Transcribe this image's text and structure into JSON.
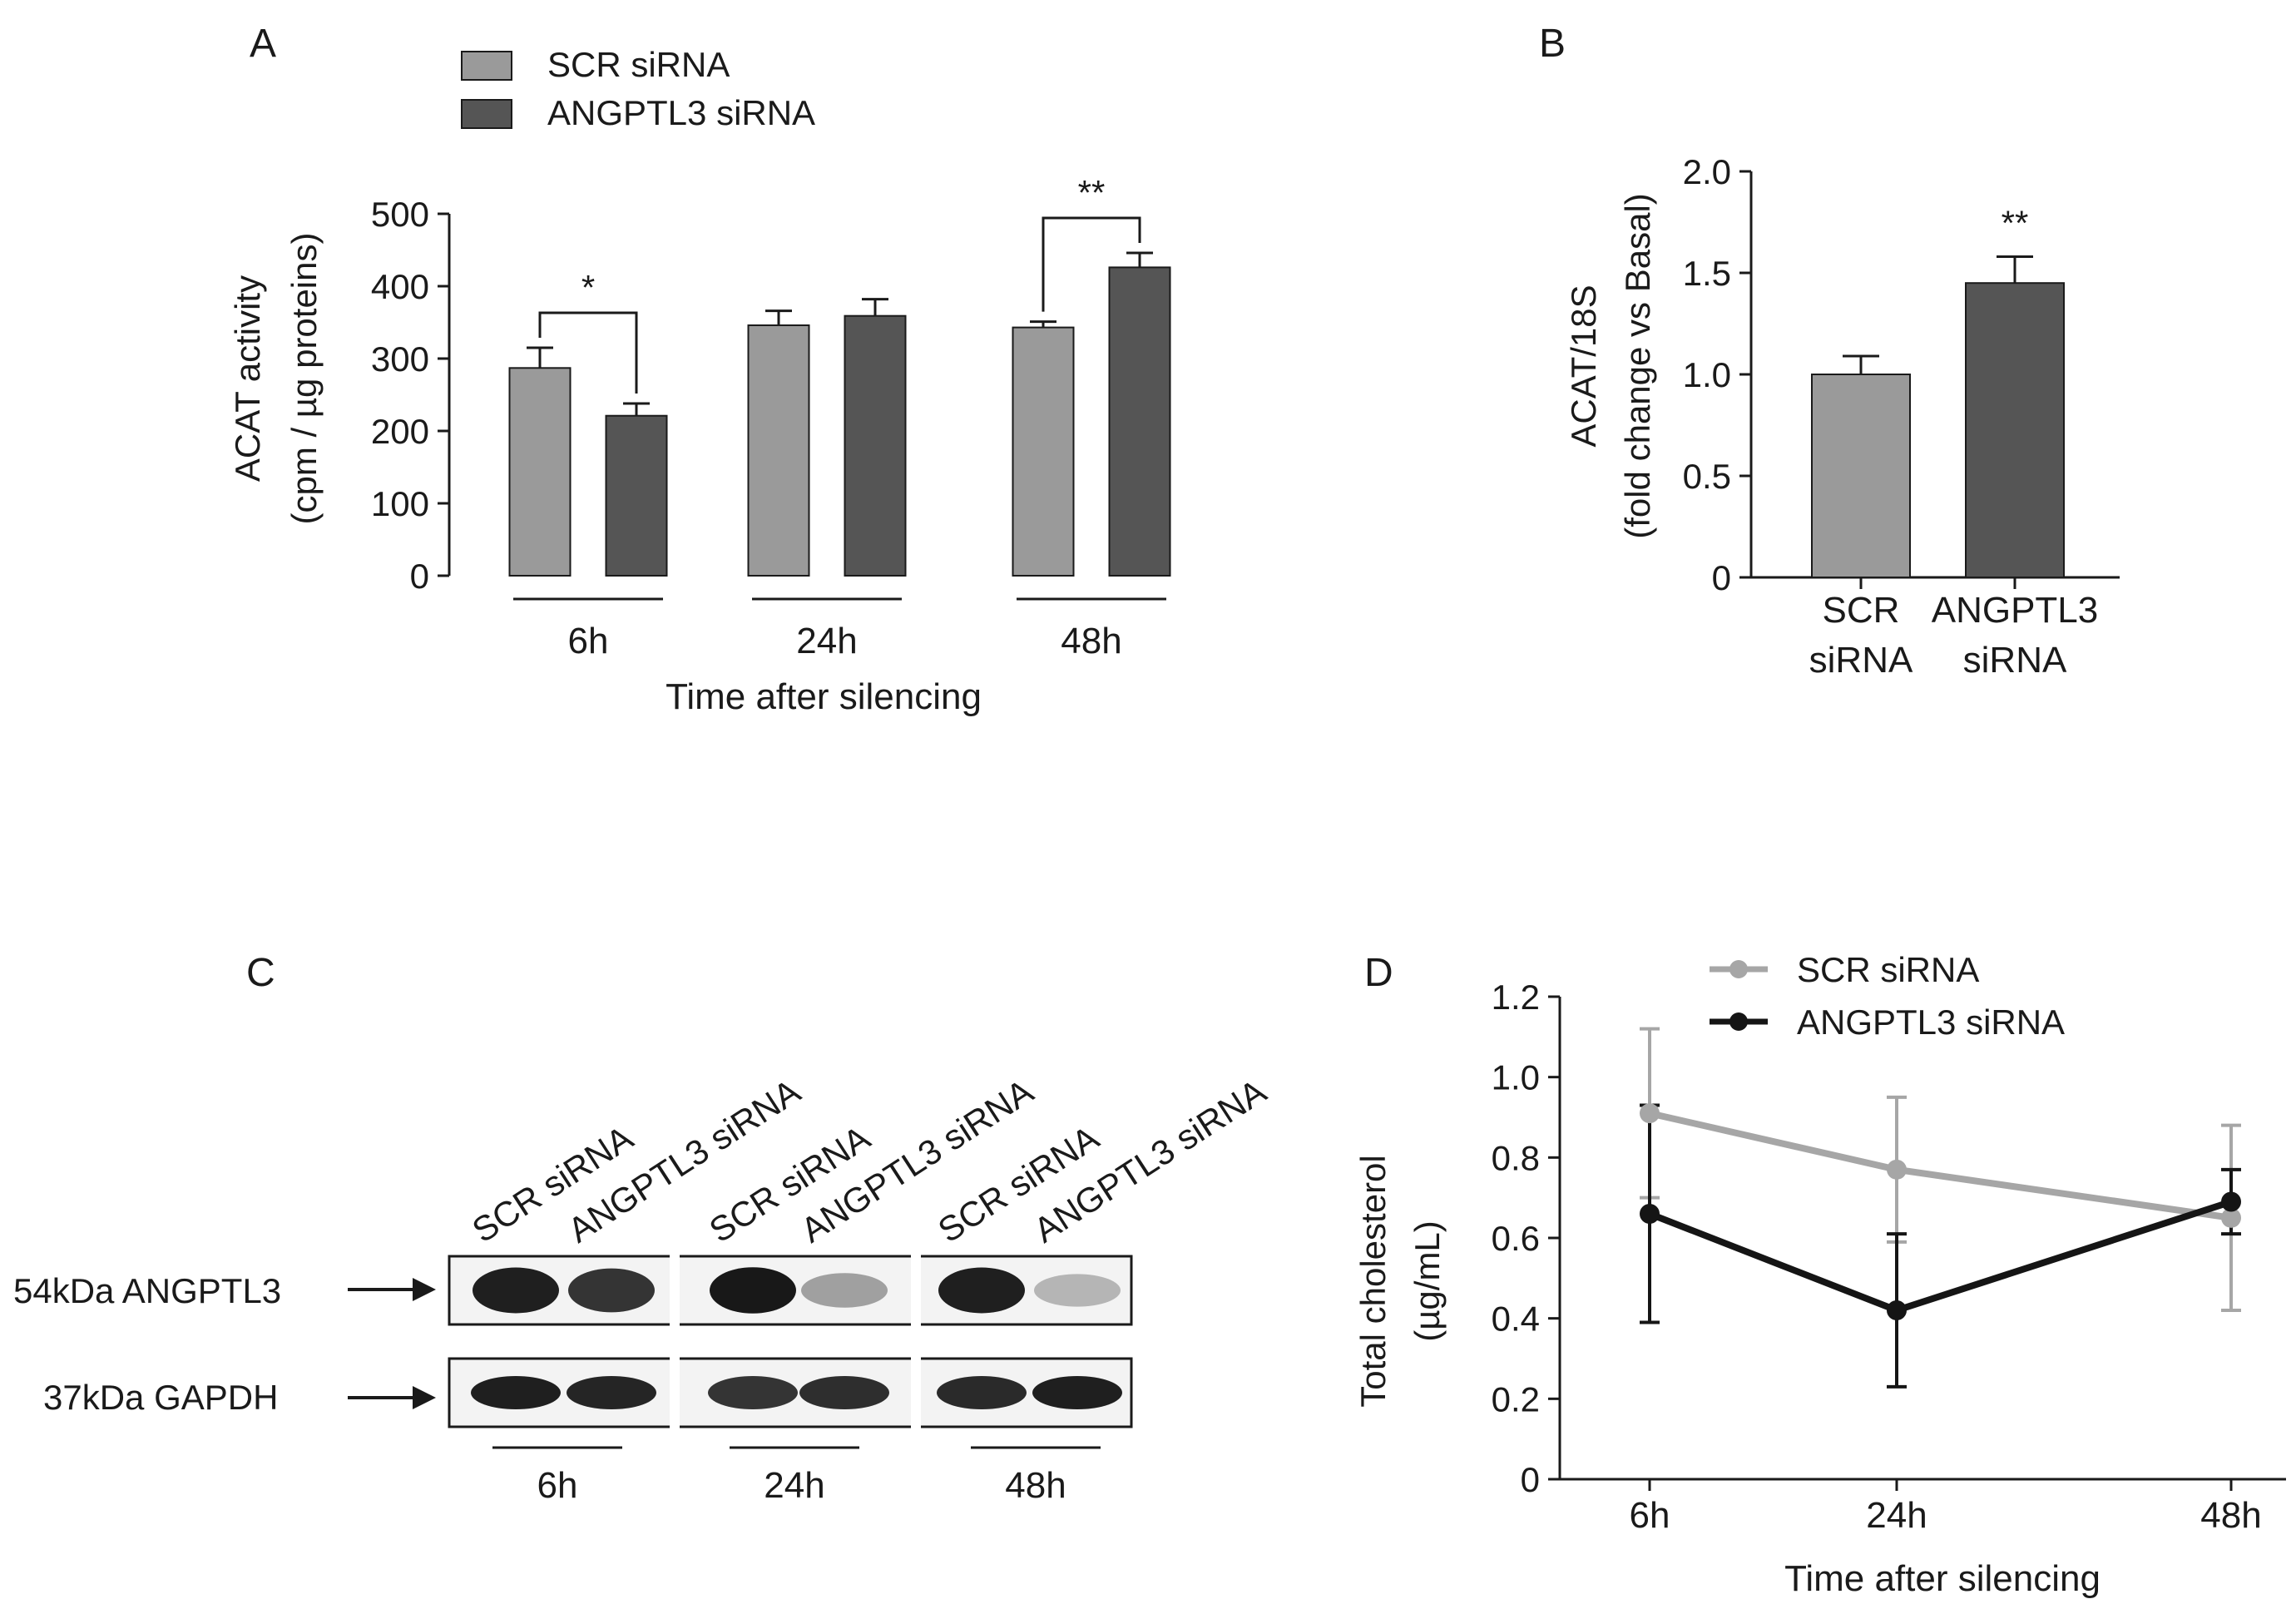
{
  "colors": {
    "scr": "#9a9a9a",
    "angptl3": "#555555",
    "axis": "#1a1a1a",
    "line_scr": "#a6a6a6",
    "line_ang": "#151515"
  },
  "chart_data": [
    {
      "panel": "A",
      "type": "bar",
      "title": "",
      "legend": [
        "SCR siRNA",
        "ANGPTL3 siRNA"
      ],
      "categories": [
        "6h",
        "24h",
        "48h"
      ],
      "series": [
        {
          "name": "SCR siRNA",
          "values": [
            287,
            346,
            343
          ],
          "errors": [
            28,
            20,
            8
          ]
        },
        {
          "name": "ANGPTL3 siRNA",
          "values": [
            221,
            359,
            426
          ],
          "errors": [
            17,
            23,
            20
          ]
        }
      ],
      "ylabel": "ACAT activity",
      "ylabel2": "(cpm / µg proteins)",
      "xlabel": "Time after silencing",
      "ylim": [
        0,
        500
      ],
      "yticks": [
        "0",
        "100",
        "200",
        "300",
        "400",
        "500"
      ],
      "significance": [
        "*",
        "",
        "**"
      ]
    },
    {
      "panel": "B",
      "type": "bar",
      "categories": [
        "SCR siRNA",
        "ANGPTL3 siRNA"
      ],
      "category_lines": [
        [
          "SCR",
          "siRNA"
        ],
        [
          "ANGPTL3",
          "siRNA"
        ]
      ],
      "values": [
        1.0,
        1.45
      ],
      "errors": [
        0.09,
        0.13
      ],
      "ylabel": "ACAT/18S",
      "ylabel2": "(fold change vs Basal)",
      "ylim": [
        0,
        2.0
      ],
      "yticks": [
        "0",
        "0.5",
        "1.0",
        "1.5",
        "2.0"
      ],
      "significance": [
        "",
        "**"
      ]
    },
    {
      "panel": "D",
      "type": "line",
      "legend": [
        "SCR siRNA",
        "ANGPTL3 siRNA"
      ],
      "x": [
        "6h",
        "24h",
        "48h"
      ],
      "series": [
        {
          "name": "SCR siRNA",
          "values": [
            0.91,
            0.77,
            0.65
          ],
          "errors": [
            0.21,
            0.18,
            0.23
          ]
        },
        {
          "name": "ANGPTL3 siRNA",
          "values": [
            0.66,
            0.42,
            0.69
          ],
          "errors": [
            0.27,
            0.19,
            0.08
          ]
        }
      ],
      "ylabel": "Total cholesterol",
      "ylabel2": "(µg/mL)",
      "xlabel": "Time after silencing",
      "ylim": [
        0,
        1.2
      ],
      "yticks": [
        "0",
        "0.2",
        "0.4",
        "0.6",
        "0.8",
        "1.0",
        "1.2"
      ]
    }
  ],
  "panels": {
    "a": "A",
    "b": "B",
    "c": "C",
    "d": "D"
  },
  "blot": {
    "lane_labels": [
      "SCR siRNA",
      "ANGPTL3 siRNA",
      "SCR siRNA",
      "ANGPTL3 siRNA",
      "SCR siRNA",
      "ANGPTL3 siRNA"
    ],
    "row_labels": [
      "54kDa ANGPTL3",
      "37kDa GAPDH"
    ],
    "time_labels": [
      "6h",
      "24h",
      "48h"
    ],
    "angptl3_intensity": [
      0.95,
      0.85,
      0.98,
      0.35,
      0.95,
      0.25
    ],
    "gapdh_intensity": [
      0.95,
      0.92,
      0.85,
      0.88,
      0.9,
      0.95
    ]
  }
}
